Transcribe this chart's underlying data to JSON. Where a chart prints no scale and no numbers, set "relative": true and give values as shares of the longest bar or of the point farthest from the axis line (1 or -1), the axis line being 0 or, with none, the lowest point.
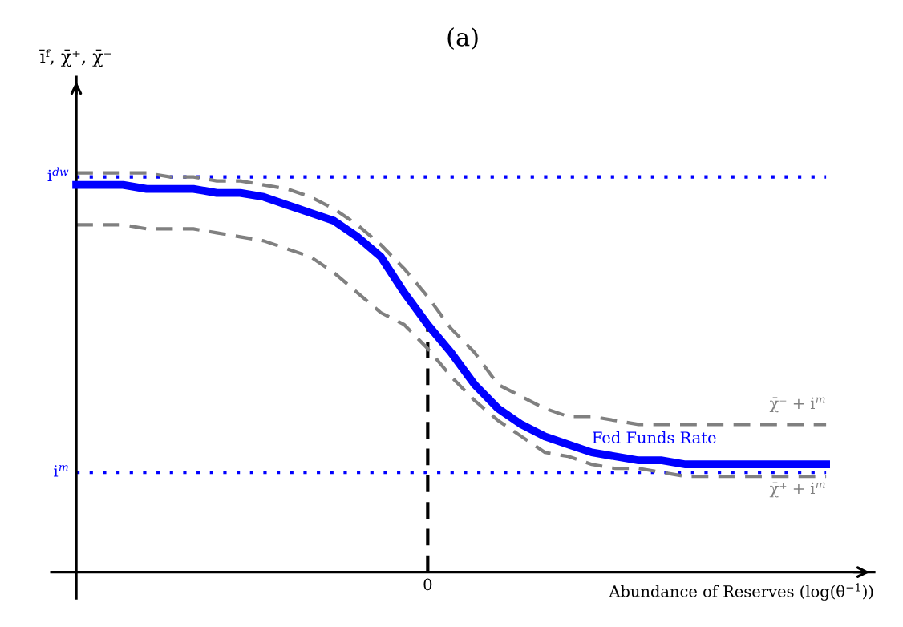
{
  "chart_data": {
    "type": "line",
    "title": "(a)",
    "xlabel": "Abundance of Reserves (log(θ$^{−1}$))",
    "relative": true,
    "legend": false,
    "marker": "none",
    "categories": [
      null,
      null,
      null,
      null,
      null,
      null,
      null,
      null,
      null,
      null,
      null,
      null,
      null,
      null,
      null,
      null,
      null,
      null,
      null,
      null,
      null,
      null,
      null,
      null,
      null,
      null,
      null,
      null,
      null,
      null,
      null,
      null,
      null
    ],
    "series": [
      {
        "name": "Fed Funds Rate",
        "color": "#0000ff",
        "line_style": "solid",
        "values": [
          0.97,
          0.97,
          0.97,
          0.96,
          0.96,
          0.96,
          0.95,
          0.95,
          0.94,
          0.92,
          0.9,
          0.88,
          0.84,
          0.79,
          0.7,
          0.62,
          0.55,
          0.47,
          0.41,
          0.37,
          0.34,
          0.32,
          0.3,
          0.29,
          0.28,
          0.28,
          0.27,
          0.27,
          0.27,
          0.27,
          0.27,
          0.27,
          0.27
        ]
      },
      {
        "name": "χ̄⁻ + i$^{m}$",
        "color": "#808080",
        "line_style": "dashed",
        "values": [
          1.0,
          1.0,
          1.0,
          1.0,
          0.99,
          0.99,
          0.98,
          0.98,
          0.97,
          0.96,
          0.94,
          0.91,
          0.87,
          0.82,
          0.76,
          0.69,
          0.61,
          0.55,
          0.47,
          0.44,
          0.41,
          0.39,
          0.39,
          0.38,
          0.37,
          0.37,
          0.37,
          0.37,
          0.37,
          0.37,
          0.37,
          0.37,
          0.37
        ]
      },
      {
        "name": "χ̄⁺ + i$^{m}$",
        "color": "#808080",
        "line_style": "dashed",
        "values": [
          0.87,
          0.87,
          0.87,
          0.86,
          0.86,
          0.86,
          0.85,
          0.84,
          0.83,
          0.81,
          0.79,
          0.75,
          0.7,
          0.65,
          0.62,
          0.56,
          0.49,
          0.43,
          0.38,
          0.34,
          0.3,
          0.29,
          0.27,
          0.26,
          0.26,
          0.25,
          0.24,
          0.24,
          0.24,
          0.24,
          0.24,
          0.24,
          0.24
        ]
      }
    ],
    "ref_lines": [
      {
        "axis": "y",
        "value": 0.99,
        "label": "i$^{dw}$",
        "color": "#0000ff",
        "line_style": "dotted"
      },
      {
        "axis": "y",
        "value": 0.25,
        "label": "i$^{m}$",
        "color": "#0000ff",
        "line_style": "dotted"
      }
    ],
    "annotations": [
      "0",
      "īᶠ, χ̄⁺, χ̄⁻"
    ]
  }
}
